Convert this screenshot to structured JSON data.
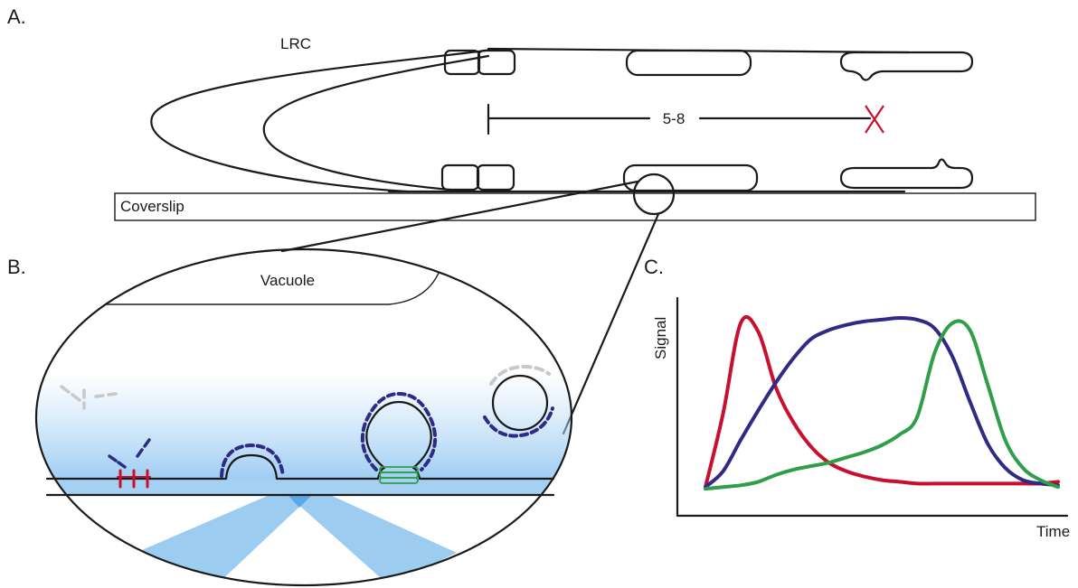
{
  "panels": {
    "a": {
      "letter": "A.",
      "root_cap_label": "LRC",
      "distance_label": "5-8",
      "coverslip_label": "Coverslip"
    },
    "b": {
      "letter": "B.",
      "vacuole_label": "Vacuole"
    },
    "c": {
      "letter": "C.",
      "y_axis_label": "Signal",
      "x_axis_label": "Time"
    }
  },
  "colors": {
    "ink": "#1a1a1a",
    "red_marker": "#c8102e",
    "blue_marker": "#2e2a85",
    "green_marker": "#2f9e48",
    "grey_marker": "#c8c8c8",
    "tirf_light": "#90c4ef",
    "evanescent_field": "#bcdcf6"
  },
  "chart_data": {
    "type": "line",
    "xlabel": "Time",
    "ylabel": "Signal",
    "x": [
      0,
      0.05,
      0.1,
      0.15,
      0.2,
      0.25,
      0.3,
      0.35,
      0.4,
      0.45,
      0.5,
      0.55,
      0.6,
      0.65,
      0.7,
      0.75,
      0.8,
      0.85,
      0.9,
      0.95,
      1.0
    ],
    "series": [
      {
        "color": "red",
        "values": [
          0.03,
          0.45,
          0.97,
          0.92,
          0.6,
          0.4,
          0.26,
          0.17,
          0.12,
          0.09,
          0.07,
          0.06,
          0.05,
          0.05,
          0.05,
          0.05,
          0.05,
          0.05,
          0.05,
          0.05,
          0.06
        ]
      },
      {
        "color": "blue",
        "values": [
          0.03,
          0.12,
          0.3,
          0.47,
          0.63,
          0.77,
          0.88,
          0.93,
          0.96,
          0.98,
          0.99,
          1.0,
          0.99,
          0.94,
          0.78,
          0.52,
          0.28,
          0.14,
          0.07,
          0.05,
          0.04
        ]
      },
      {
        "color": "green",
        "values": [
          0.02,
          0.03,
          0.04,
          0.06,
          0.1,
          0.13,
          0.15,
          0.17,
          0.2,
          0.23,
          0.27,
          0.33,
          0.43,
          0.8,
          0.97,
          0.93,
          0.62,
          0.3,
          0.14,
          0.07,
          0.03
        ]
      }
    ]
  }
}
